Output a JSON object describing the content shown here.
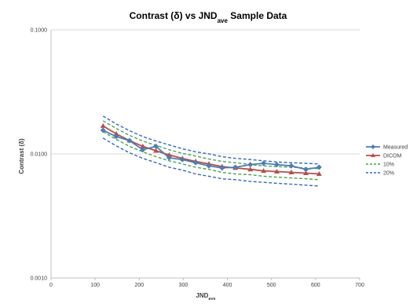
{
  "chart_data": {
    "type": "line",
    "title": {
      "main": "Contrast (δ) vs JND",
      "sub": "ave",
      "tail": " Sample Data"
    },
    "xlabel": {
      "main": "JND",
      "sub": "ave"
    },
    "ylabel": "Contrast (δ)",
    "xlim": [
      0,
      700
    ],
    "xticks": [
      0,
      100,
      200,
      300,
      400,
      500,
      600,
      700
    ],
    "ylim": [
      0.001,
      0.1
    ],
    "y_scale": "log",
    "yticks": [
      {
        "value": 0.001,
        "label": "0.0010"
      },
      {
        "value": 0.01,
        "label": "0.0100"
      },
      {
        "value": 0.1,
        "label": "0.1000"
      }
    ],
    "grid": "horizontal major gridlines",
    "legend_position": "right",
    "series": [
      {
        "name": "Measured",
        "color": "#4a7ebb",
        "style": "solid",
        "marker": "diamond",
        "x": [
          118,
          148,
          178,
          208,
          238,
          268,
          298,
          328,
          358,
          388,
          418,
          452,
          482,
          512,
          545,
          578,
          608
        ],
        "y": [
          0.0155,
          0.0138,
          0.0128,
          0.0108,
          0.0115,
          0.0093,
          0.009,
          0.0085,
          0.008,
          0.0077,
          0.0078,
          0.0082,
          0.0084,
          0.0082,
          0.008,
          0.0075,
          0.0078
        ]
      },
      {
        "name": "DICOM",
        "color": "#be4b48",
        "style": "solid",
        "marker": "triangle",
        "x": [
          118,
          148,
          178,
          208,
          238,
          268,
          298,
          328,
          358,
          388,
          418,
          452,
          482,
          512,
          545,
          578,
          608
        ],
        "y": [
          0.0168,
          0.0145,
          0.0128,
          0.0115,
          0.0106,
          0.0098,
          0.0092,
          0.0087,
          0.0083,
          0.0079,
          0.0077,
          0.0075,
          0.0073,
          0.0072,
          0.0071,
          0.007,
          0.0069
        ]
      },
      {
        "name": "10%",
        "color": "#46a84a",
        "style": "dashed",
        "marker": "none",
        "x": [
          118,
          148,
          178,
          208,
          238,
          268,
          298,
          328,
          358,
          388,
          418,
          452,
          482,
          512,
          545,
          578,
          608
        ],
        "y": [
          0.0185,
          0.016,
          0.0141,
          0.0127,
          0.0117,
          0.0108,
          0.0101,
          0.0096,
          0.0091,
          0.0087,
          0.0085,
          0.0082,
          0.008,
          0.0079,
          0.0078,
          0.0077,
          0.0076
        ]
      },
      {
        "name": "10% ",
        "color": "#46a84a",
        "style": "dashed",
        "marker": "none",
        "legend": false,
        "x": [
          118,
          148,
          178,
          208,
          238,
          268,
          298,
          328,
          358,
          388,
          418,
          452,
          482,
          512,
          545,
          578,
          608
        ],
        "y": [
          0.0151,
          0.0131,
          0.0115,
          0.0104,
          0.0095,
          0.0088,
          0.0083,
          0.0078,
          0.0075,
          0.0071,
          0.0069,
          0.0068,
          0.0066,
          0.0065,
          0.0064,
          0.0063,
          0.0062
        ]
      },
      {
        "name": "20%",
        "color": "#2e69c8",
        "style": "dashed",
        "marker": "none",
        "x": [
          118,
          148,
          178,
          208,
          238,
          268,
          298,
          328,
          358,
          388,
          418,
          452,
          482,
          512,
          545,
          578,
          608
        ],
        "y": [
          0.0202,
          0.0174,
          0.0154,
          0.0138,
          0.0127,
          0.0118,
          0.011,
          0.0104,
          0.01,
          0.0095,
          0.0092,
          0.009,
          0.0088,
          0.0086,
          0.0085,
          0.0084,
          0.0083
        ]
      },
      {
        "name": "20% ",
        "color": "#2e69c8",
        "style": "dashed",
        "marker": "none",
        "legend": false,
        "x": [
          118,
          148,
          178,
          208,
          238,
          268,
          298,
          328,
          358,
          388,
          418,
          452,
          482,
          512,
          545,
          578,
          608
        ],
        "y": [
          0.0134,
          0.0116,
          0.0102,
          0.0092,
          0.0085,
          0.0078,
          0.0074,
          0.0069,
          0.0066,
          0.0063,
          0.0062,
          0.006,
          0.0059,
          0.0058,
          0.0057,
          0.0056,
          0.0055
        ]
      }
    ]
  }
}
